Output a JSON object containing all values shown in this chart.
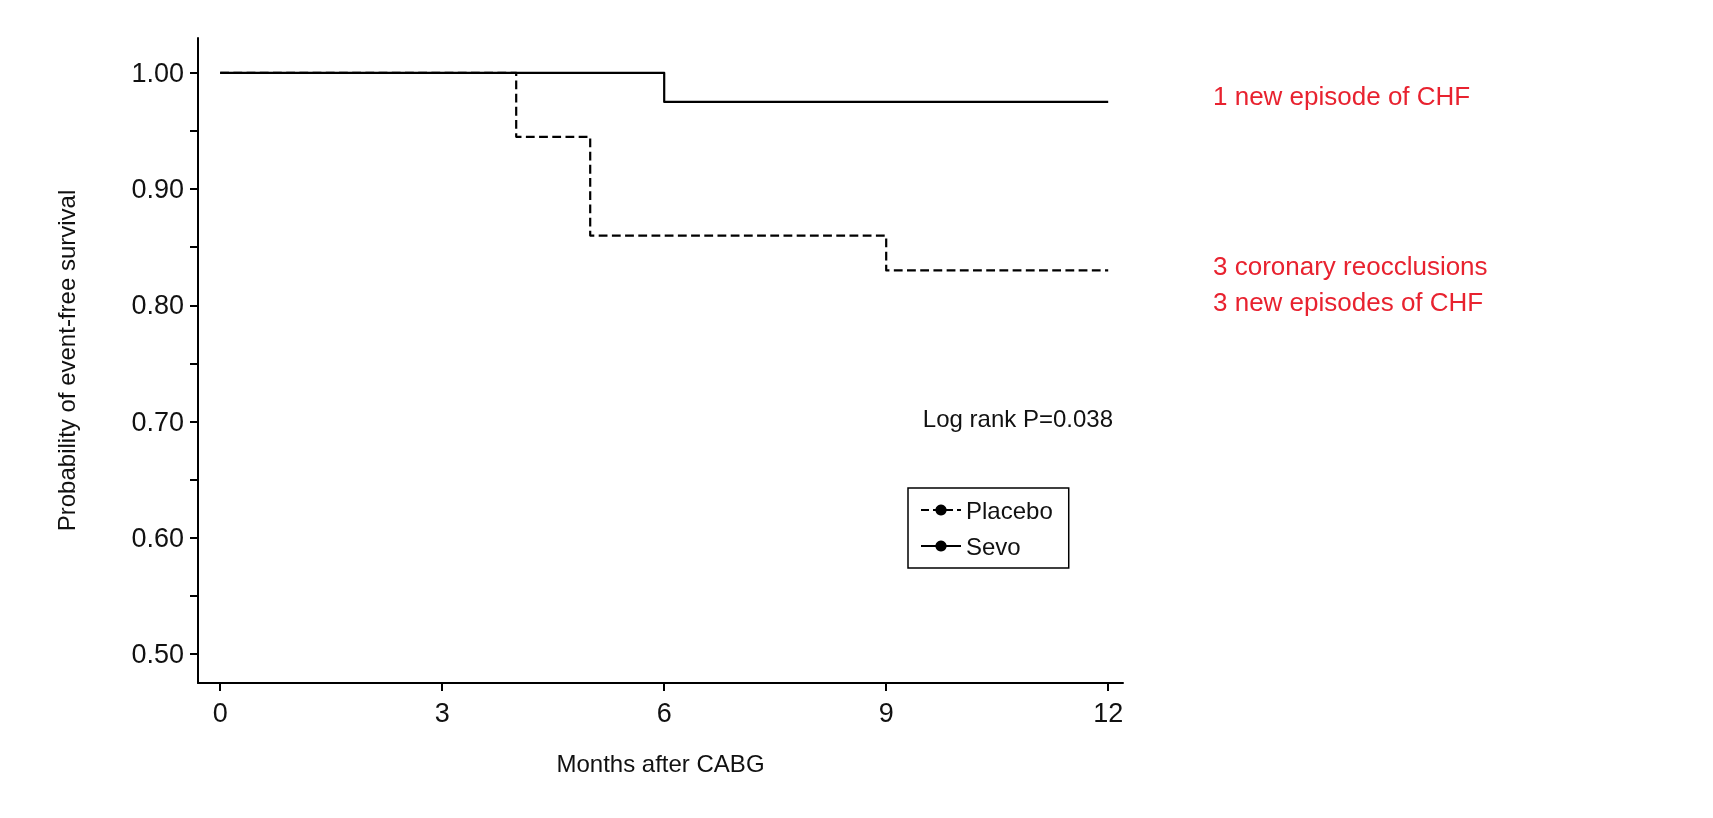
{
  "chart_data": {
    "type": "step",
    "xlabel": "Months after CABG",
    "ylabel": "Probability of event-free survival",
    "series": [
      {
        "name": "Placebo",
        "color": "#000000",
        "line_style": "dashed",
        "x": [
          0,
          4,
          5,
          9,
          12
        ],
        "values": [
          1.0,
          0.945,
          0.86,
          0.83,
          0.83
        ]
      },
      {
        "name": "Sevo",
        "color": "#000000",
        "line_style": "solid",
        "x": [
          0,
          6,
          12
        ],
        "values": [
          1.0,
          0.975,
          0.975
        ]
      }
    ],
    "xlim": [
      -0.3,
      12.2
    ],
    "xticks": [
      0,
      3,
      6,
      9,
      12
    ],
    "ylim": [
      0.475,
      1.03
    ],
    "yticks": [
      {
        "value": 0.5,
        "label": "0.50"
      },
      {
        "value": 0.55,
        "label": null
      },
      {
        "value": 0.6,
        "label": "0.60"
      },
      {
        "value": 0.65,
        "label": null
      },
      {
        "value": 0.7,
        "label": "0.70"
      },
      {
        "value": 0.75,
        "label": null
      },
      {
        "value": 0.8,
        "label": "0.80"
      },
      {
        "value": 0.85,
        "label": null
      },
      {
        "value": 0.9,
        "label": "0.90"
      },
      {
        "value": 0.95,
        "label": null
      },
      {
        "value": 1.0,
        "label": "1.00"
      }
    ],
    "annotations": [
      "1 new episode of CHF",
      "3 coronary reocclusions\n3 new episodes of CHF",
      "Log rank P=0.038"
    ],
    "legend": "bottom right",
    "grid": false,
    "marker": "none"
  }
}
